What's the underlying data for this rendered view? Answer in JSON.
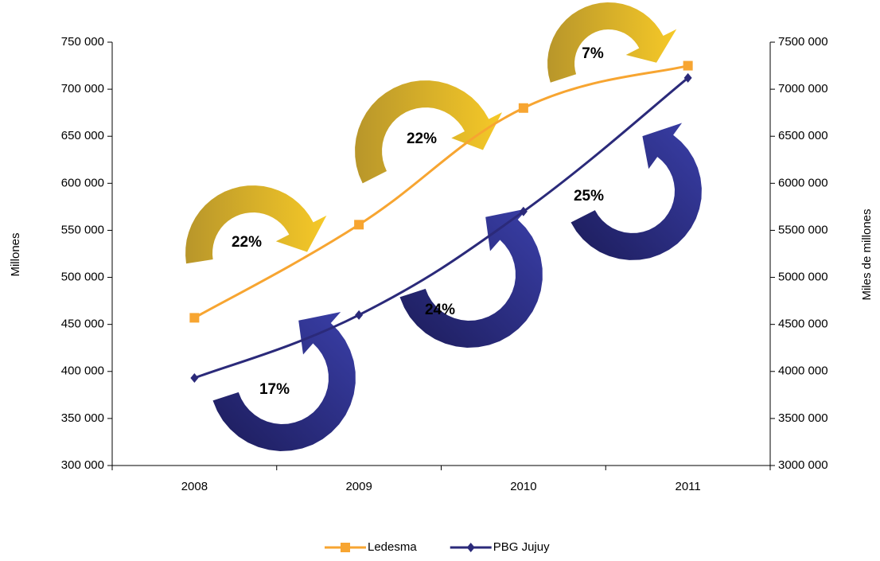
{
  "chart_data": {
    "type": "line",
    "categories": [
      "2008",
      "2009",
      "2010",
      "2011"
    ],
    "series": [
      {
        "name": "Ledesma",
        "color": "#f7a531",
        "marker": "square",
        "values": [
          457000,
          556000,
          680000,
          725000
        ]
      },
      {
        "name": "PBG Jujuy",
        "color": "#2b2a7a",
        "marker": "diamond",
        "axis": "y2",
        "values": [
          3930000,
          4600000,
          5700000,
          7120000
        ]
      }
    ],
    "ylabel": "Millones",
    "y2label": "Miles de millones",
    "ylim": [
      300000,
      750000
    ],
    "yticks": [
      {
        "value": 300000,
        "label": "300 000"
      },
      {
        "value": 350000,
        "label": "350 000"
      },
      {
        "value": 400000,
        "label": "400 000"
      },
      {
        "value": 450000,
        "label": "450 000"
      },
      {
        "value": 500000,
        "label": "500 000"
      },
      {
        "value": 550000,
        "label": "550 000"
      },
      {
        "value": 600000,
        "label": "600 000"
      },
      {
        "value": 650000,
        "label": "650 000"
      },
      {
        "value": 700000,
        "label": "700 000"
      },
      {
        "value": 750000,
        "label": "750 000"
      }
    ],
    "y2lim": [
      3000000,
      7500000
    ],
    "y2ticks": [
      {
        "value": 3000000,
        "label": "3000 000"
      },
      {
        "value": 3500000,
        "label": "3500 000"
      },
      {
        "value": 4000000,
        "label": "4000 000"
      },
      {
        "value": 4500000,
        "label": "4500 000"
      },
      {
        "value": 5000000,
        "label": "5000 000"
      },
      {
        "value": 5500000,
        "label": "5500 000"
      },
      {
        "value": 6000000,
        "label": "6000 000"
      },
      {
        "value": 6500000,
        "label": "6500 000"
      },
      {
        "value": 7000000,
        "label": "7000 000"
      },
      {
        "value": 7500000,
        "label": "7500 000"
      }
    ],
    "annotations": [
      "22%",
      "22%",
      "7%",
      "17%",
      "24%",
      "25%"
    ],
    "legend": "bottom"
  }
}
